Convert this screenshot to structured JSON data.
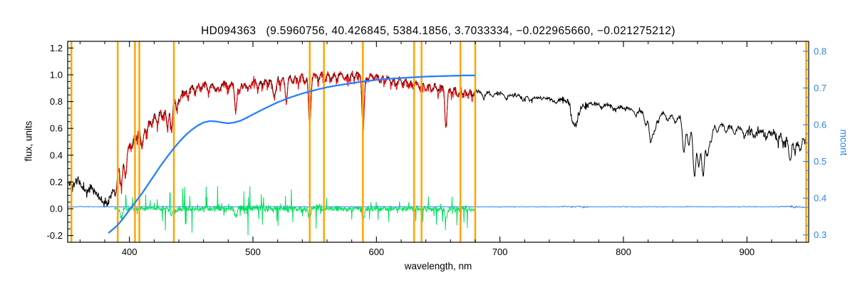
{
  "figure": {
    "title": "HD094363   (9.5960756, 40.426845, 5384.1856, 3.7033334, −0.022965660, −0.021275212)",
    "xlabel": "wavelength, nm",
    "ylabel_left": "flux, units",
    "ylabel_right": "mcont"
  },
  "chart_data": {
    "type": "line",
    "title": "HD094363 (9.5960756, 40.426845, 5384.1856, 3.7033334, −0.022965660, −0.021275212)",
    "target_id": "HD094363",
    "header_params": [
      "9.5960756",
      "40.426845",
      "5384.1856",
      "3.7033334",
      "-0.022965660",
      "-0.021275212"
    ],
    "xlabel": "wavelength, nm",
    "ylabel": "flux, units",
    "ylabel_right": "mcont",
    "x_range": [
      350,
      950
    ],
    "y_left_range": [
      -0.25,
      1.25
    ],
    "y_right_range": [
      0.28,
      0.827
    ],
    "x_ticks": {
      "values": [
        400,
        500,
        600,
        700,
        800,
        900
      ],
      "labels": [
        "400",
        "500",
        "600",
        "700",
        "800",
        "900"
      ],
      "minor_step": 20
    },
    "y_left_ticks": {
      "values": [
        -0.2,
        0.0,
        0.2,
        0.4,
        0.6,
        0.8,
        1.0,
        1.2
      ],
      "labels": [
        "-0.2",
        "0.0",
        "0.2",
        "0.4",
        "0.6",
        "0.8",
        "1.0",
        "1.2"
      ],
      "minor_step": 0.05
    },
    "y_right_ticks": {
      "values": [
        0.3,
        0.4,
        0.5,
        0.6,
        0.7,
        0.8
      ],
      "labels": [
        "0.3",
        "0.4",
        "0.5",
        "0.6",
        "0.7",
        "0.8"
      ],
      "minor_step": 0.025
    },
    "colors": {
      "observed": "#000000",
      "fit_region": "#e60000",
      "residual": "#00e060",
      "continuum": "#2a7fff",
      "mask": "#ffa500",
      "frame": "#000000",
      "background": "#ffffff"
    },
    "mask_lines": [
      353,
      390.5,
      404.5,
      408,
      436,
      546,
      557.5,
      589,
      630.5,
      636.5,
      668,
      680,
      948
    ],
    "series": [
      {
        "name": "observed_spectrum",
        "color_key": "observed",
        "axis": "left",
        "style": "noisy",
        "seed": 11,
        "step": 0.35,
        "range": [
          350,
          948
        ],
        "noise": 0.022,
        "width": 1.0,
        "noise_regions": [
          [
            350,
            386,
            2.2
          ],
          [
            386,
            445,
            1.5
          ],
          [
            445,
            680,
            1.0
          ],
          [
            680,
            750,
            0.9
          ],
          [
            750,
            772,
            1.9
          ],
          [
            772,
            900,
            1.1
          ],
          [
            900,
            948,
            2.2
          ]
        ],
        "envelope": [
          [
            350,
            0.2
          ],
          [
            354,
            0.17
          ],
          [
            358,
            0.22
          ],
          [
            362,
            0.16
          ],
          [
            366,
            0.13
          ],
          [
            370,
            0.16
          ],
          [
            374,
            0.1
          ],
          [
            378,
            0.06
          ],
          [
            382,
            0.05
          ],
          [
            385,
            0.1
          ],
          [
            388,
            0.18
          ],
          [
            391,
            0.3
          ],
          [
            394,
            0.38
          ],
          [
            397,
            0.42
          ],
          [
            400,
            0.48
          ],
          [
            404,
            0.55
          ],
          [
            408,
            0.59
          ],
          [
            412,
            0.6
          ],
          [
            416,
            0.65
          ],
          [
            420,
            0.69
          ],
          [
            424,
            0.72
          ],
          [
            428,
            0.74
          ],
          [
            432,
            0.77
          ],
          [
            436,
            0.81
          ],
          [
            440,
            0.86
          ],
          [
            445,
            0.9
          ],
          [
            450,
            0.91
          ],
          [
            455,
            0.92
          ],
          [
            460,
            0.94
          ],
          [
            465,
            0.93
          ],
          [
            470,
            0.92
          ],
          [
            475,
            0.93
          ],
          [
            480,
            0.94
          ],
          [
            485,
            0.93
          ],
          [
            490,
            0.94
          ],
          [
            495,
            0.95
          ],
          [
            500,
            0.96
          ],
          [
            505,
            0.95
          ],
          [
            510,
            0.97
          ],
          [
            515,
            0.96
          ],
          [
            520,
            0.99
          ],
          [
            525,
            0.98
          ],
          [
            530,
            0.99
          ],
          [
            535,
            0.98
          ],
          [
            540,
            1.0
          ],
          [
            545,
            0.99
          ],
          [
            550,
            1.0
          ],
          [
            555,
            1.01
          ],
          [
            560,
            1.01
          ],
          [
            565,
            1.0
          ],
          [
            570,
            1.01
          ],
          [
            575,
            1.0
          ],
          [
            580,
            1.02
          ],
          [
            585,
            1.01
          ],
          [
            590,
            1.0
          ],
          [
            595,
            1.0
          ],
          [
            600,
            1.0
          ],
          [
            605,
            0.99
          ],
          [
            610,
            0.98
          ],
          [
            615,
            0.97
          ],
          [
            620,
            0.97
          ],
          [
            625,
            0.96
          ],
          [
            630,
            0.95
          ],
          [
            635,
            0.94
          ],
          [
            640,
            0.93
          ],
          [
            645,
            0.92
          ],
          [
            650,
            0.92
          ],
          [
            655,
            0.91
          ],
          [
            660,
            0.9
          ],
          [
            665,
            0.89
          ],
          [
            670,
            0.89
          ],
          [
            675,
            0.88
          ],
          [
            680,
            0.88
          ],
          [
            690,
            0.87
          ],
          [
            700,
            0.86
          ],
          [
            710,
            0.85
          ],
          [
            720,
            0.84
          ],
          [
            730,
            0.83
          ],
          [
            740,
            0.82
          ],
          [
            750,
            0.81
          ],
          [
            760,
            0.79
          ],
          [
            770,
            0.79
          ],
          [
            780,
            0.78
          ],
          [
            790,
            0.77
          ],
          [
            800,
            0.75
          ],
          [
            810,
            0.74
          ],
          [
            820,
            0.72
          ],
          [
            830,
            0.71
          ],
          [
            840,
            0.7
          ],
          [
            850,
            0.68
          ],
          [
            860,
            0.66
          ],
          [
            870,
            0.64
          ],
          [
            880,
            0.63
          ],
          [
            890,
            0.61
          ],
          [
            900,
            0.6
          ],
          [
            910,
            0.58
          ],
          [
            920,
            0.57
          ],
          [
            930,
            0.55
          ],
          [
            940,
            0.54
          ],
          [
            948,
            0.58
          ]
        ],
        "lines": [
          [
            388.9,
            0.1
          ],
          [
            393.4,
            0.2
          ],
          [
            396.8,
            0.18
          ],
          [
            402,
            0.05
          ],
          [
            406,
            0.04
          ],
          [
            410.2,
            0.14
          ],
          [
            414,
            0.05
          ],
          [
            418,
            0.04
          ],
          [
            422.7,
            0.07
          ],
          [
            427.2,
            0.06
          ],
          [
            430.8,
            0.16
          ],
          [
            434,
            0.2
          ],
          [
            438.4,
            0.09
          ],
          [
            441,
            0.06
          ],
          [
            444.5,
            0.05
          ],
          [
            447.5,
            0.07
          ],
          [
            453,
            0.05
          ],
          [
            458,
            0.04
          ],
          [
            464,
            0.06
          ],
          [
            470,
            0.04
          ],
          [
            473,
            0.05
          ],
          [
            480,
            0.05
          ],
          [
            486.1,
            0.2
          ],
          [
            489,
            0.05
          ],
          [
            492,
            0.04
          ],
          [
            495.7,
            0.06
          ],
          [
            498,
            0.04
          ],
          [
            504,
            0.05
          ],
          [
            508,
            0.04
          ],
          [
            512,
            0.04
          ],
          [
            516.7,
            0.11
          ],
          [
            518.4,
            0.09
          ],
          [
            522,
            0.06
          ],
          [
            527,
            0.18
          ],
          [
            532,
            0.05
          ],
          [
            537,
            0.05
          ],
          [
            542,
            0.06
          ],
          [
            546,
            0.38
          ],
          [
            553,
            0.05
          ],
          [
            558,
            0.06
          ],
          [
            563,
            0.04
          ],
          [
            568,
            0.04
          ],
          [
            574,
            0.04
          ],
          [
            578,
            0.05
          ],
          [
            582,
            0.04
          ],
          [
            589.2,
            0.4
          ],
          [
            593,
            0.04
          ],
          [
            598,
            0.03
          ],
          [
            603,
            0.04
          ],
          [
            607,
            0.04
          ],
          [
            612,
            0.04
          ],
          [
            616,
            0.05
          ],
          [
            621,
            0.04
          ],
          [
            626,
            0.04
          ],
          [
            630,
            0.05
          ],
          [
            635,
            0.04
          ],
          [
            640,
            0.04
          ],
          [
            645,
            0.04
          ],
          [
            650,
            0.05
          ],
          [
            656.3,
            0.3
          ],
          [
            661,
            0.04
          ],
          [
            666,
            0.05
          ],
          [
            670,
            0.04
          ],
          [
            674,
            0.04
          ],
          [
            678,
            0.04
          ]
        ],
        "extra_dips": [
          [
            686.9,
            0.05
          ],
          [
            694,
            0.03
          ],
          [
            705,
            0.03
          ],
          [
            719,
            0.04
          ],
          [
            725,
            0.03
          ],
          [
            745,
            0.03
          ],
          [
            758.5,
            0.09
          ],
          [
            760.5,
            0.12
          ],
          [
            762.5,
            0.1
          ],
          [
            765,
            0.06
          ],
          [
            769,
            0.04
          ],
          [
            782,
            0.03
          ],
          [
            793,
            0.03
          ],
          [
            810,
            0.04
          ],
          [
            818,
            0.1
          ],
          [
            822,
            0.22
          ],
          [
            825,
            0.14
          ],
          [
            828,
            0.06
          ],
          [
            836,
            0.04
          ],
          [
            842,
            0.05
          ],
          [
            849,
            0.26
          ],
          [
            853,
            0.2
          ],
          [
            857.5,
            0.42
          ],
          [
            861,
            0.33
          ],
          [
            864.5,
            0.4
          ],
          [
            868,
            0.24
          ],
          [
            871,
            0.12
          ],
          [
            876,
            0.06
          ],
          [
            883,
            0.05
          ],
          [
            890,
            0.05
          ],
          [
            898,
            0.06
          ],
          [
            906,
            0.05
          ],
          [
            915,
            0.05
          ],
          [
            925,
            0.06
          ],
          [
            930,
            0.08
          ],
          [
            935,
            0.18
          ],
          [
            939,
            0.1
          ],
          [
            943,
            0.12
          ],
          [
            947,
            0.08
          ]
        ]
      },
      {
        "name": "fitted_spectrum",
        "color_key": "fit_region",
        "axis": "left",
        "style": "noisy",
        "seed": 47,
        "step": 0.35,
        "range": [
          388,
          680
        ],
        "noise": 0.03,
        "width": 1.0,
        "down_bias": 0.05,
        "noise_regions": [
          [
            386,
            445,
            1.5
          ],
          [
            445,
            680,
            1.0
          ]
        ],
        "envelope_from": "observed_spectrum",
        "lines_from": "observed_spectrum"
      },
      {
        "name": "flat_reference",
        "color_key": "continuum",
        "axis": "left",
        "style": "noisy",
        "seed": 7,
        "step": 0.6,
        "range": [
          350,
          948
        ],
        "baseline": 0.015,
        "noise": 0.0035,
        "width": 1.0,
        "noise_regions": [
          [
            750,
            772,
            3.0
          ],
          [
            925,
            948,
            3.5
          ]
        ]
      },
      {
        "name": "residual",
        "color_key": "residual",
        "axis": "left",
        "style": "noisy",
        "seed": 83,
        "step": 0.3,
        "range": [
          388,
          680
        ],
        "baseline": 0.0,
        "noise": 0.03,
        "width": 1.0,
        "noise_regions": [
          [
            388,
            425,
            0.8
          ],
          [
            425,
            560,
            1.4
          ],
          [
            560,
            680,
            1.0
          ]
        ],
        "spike_chance": 0.06,
        "spike_scale": 2.8,
        "lines": [
          [
            393.4,
            0.07
          ],
          [
            434,
            0.05
          ],
          [
            486.1,
            0.05
          ],
          [
            546,
            0.07
          ],
          [
            589.2,
            0.08
          ],
          [
            656.3,
            0.07
          ]
        ]
      },
      {
        "name": "continuum_mcont",
        "color_key": "continuum",
        "axis": "right",
        "style": "smooth",
        "width": 2.3,
        "range": [
          383,
          680
        ],
        "draw_after_mask": true,
        "envelope": [
          [
            383,
            0.305
          ],
          [
            390,
            0.325
          ],
          [
            395,
            0.345
          ],
          [
            400,
            0.368
          ],
          [
            405,
            0.39
          ],
          [
            410,
            0.412
          ],
          [
            415,
            0.437
          ],
          [
            420,
            0.462
          ],
          [
            425,
            0.487
          ],
          [
            430,
            0.51
          ],
          [
            435,
            0.532
          ],
          [
            440,
            0.552
          ],
          [
            445,
            0.57
          ],
          [
            450,
            0.585
          ],
          [
            455,
            0.597
          ],
          [
            460,
            0.606
          ],
          [
            465,
            0.61
          ],
          [
            470,
            0.609
          ],
          [
            475,
            0.606
          ],
          [
            480,
            0.604
          ],
          [
            485,
            0.606
          ],
          [
            490,
            0.611
          ],
          [
            495,
            0.619
          ],
          [
            500,
            0.628
          ],
          [
            510,
            0.645
          ],
          [
            520,
            0.661
          ],
          [
            530,
            0.674
          ],
          [
            540,
            0.685
          ],
          [
            550,
            0.694
          ],
          [
            560,
            0.702
          ],
          [
            570,
            0.708
          ],
          [
            580,
            0.713
          ],
          [
            590,
            0.718
          ],
          [
            600,
            0.722
          ],
          [
            610,
            0.725
          ],
          [
            620,
            0.727
          ],
          [
            630,
            0.729
          ],
          [
            640,
            0.731
          ],
          [
            650,
            0.732
          ],
          [
            660,
            0.733
          ],
          [
            670,
            0.734
          ],
          [
            680,
            0.734
          ]
        ]
      }
    ]
  }
}
